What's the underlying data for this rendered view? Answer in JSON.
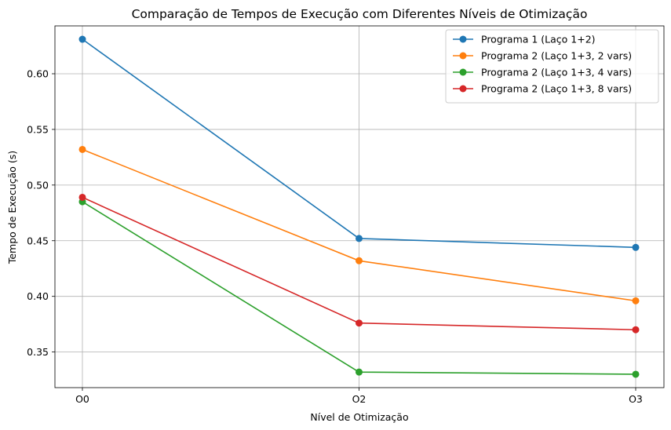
{
  "chart_data": {
    "type": "line",
    "title": "Comparação de Tempos de Execução com Diferentes Níveis de Otimização",
    "xlabel": "Nível de Otimização",
    "ylabel": "Tempo de Execução (s)",
    "categories": [
      "O0",
      "O2",
      "O3"
    ],
    "ylim": [
      0.318,
      0.643
    ],
    "yticks": [
      "0.35",
      "0.40",
      "0.45",
      "0.50",
      "0.55",
      "0.60"
    ],
    "grid": true,
    "legend_position": "top-right",
    "series": [
      {
        "name": "Programa 1 (Laço 1+2)",
        "color": "#1f77b4",
        "values": [
          0.631,
          0.452,
          0.444
        ]
      },
      {
        "name": "Programa 2 (Laço 1+3, 2 vars)",
        "color": "#ff7f0e",
        "values": [
          0.532,
          0.432,
          0.396
        ]
      },
      {
        "name": "Programa 2 (Laço 1+3, 4 vars)",
        "color": "#2ca02c",
        "values": [
          0.485,
          0.332,
          0.33
        ]
      },
      {
        "name": "Programa 2 (Laço 1+3, 8 vars)",
        "color": "#d62728",
        "values": [
          0.489,
          0.376,
          0.37
        ]
      }
    ]
  }
}
